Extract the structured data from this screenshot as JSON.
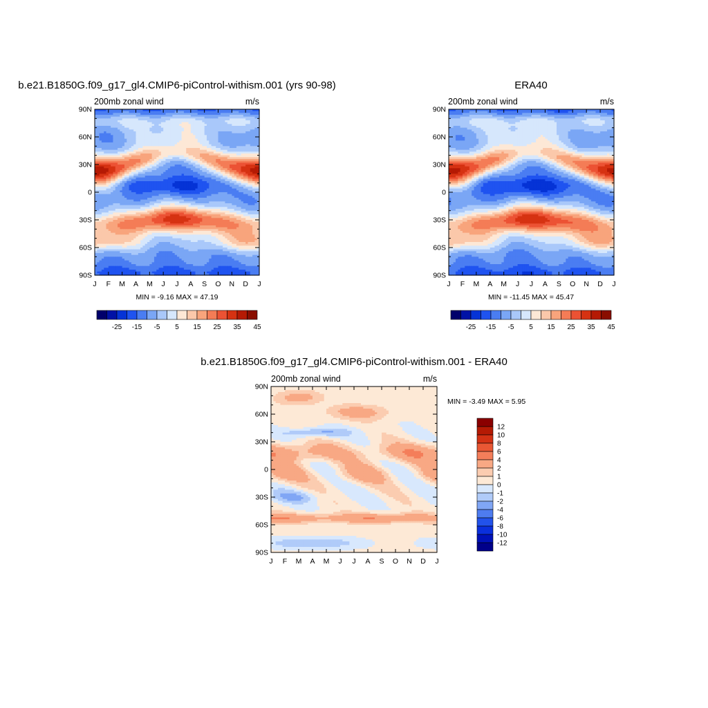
{
  "panels": [
    {
      "title": "b.e21.B1850G.f09_g17_gl4.CMIP6-piControl-withism.001 (yrs 90-98)",
      "left_label": "200mb zonal wind",
      "right_label": "m/s",
      "minmax_text": "MIN =  -9.16 MAX =  47.19",
      "kind": "model"
    },
    {
      "title": "ERA40",
      "left_label": "200mb zonal wind",
      "right_label": "m/s",
      "minmax_text": "MIN = -11.45 MAX =  45.47",
      "kind": "obs"
    },
    {
      "title": "b.e21.B1850G.f09_g17_gl4.CMIP6-piControl-withism.001 - ERA40",
      "left_label": "200mb zonal wind",
      "right_label": "m/s",
      "minmax_text": "MIN =  -3.49 MAX =   5.95",
      "kind": "diff"
    }
  ],
  "chart_data": [
    {
      "type": "heatmap",
      "title": "b.e21.B1850G.f09_g17_gl4.CMIP6-piControl-withism.001 (yrs 90-98)",
      "x_ticks": [
        "J",
        "F",
        "M",
        "A",
        "M",
        "J",
        "J",
        "A",
        "S",
        "O",
        "N",
        "D",
        "J"
      ],
      "y_ticks": [
        "90N",
        "60N",
        "30N",
        "0",
        "30S",
        "60S",
        "90S"
      ],
      "ylim": [
        -90,
        90
      ],
      "units": "m/s",
      "min": -9.16,
      "max": 47.19,
      "colorbar_labels": [
        "-25",
        "-15",
        "-5",
        "5",
        "15",
        "25",
        "35",
        "45"
      ],
      "contour_levels": [
        -30,
        -25,
        -20,
        -15,
        -10,
        -5,
        0,
        5,
        10,
        15,
        20,
        25,
        30,
        35,
        40,
        45,
        50
      ]
    },
    {
      "type": "heatmap",
      "title": "ERA40",
      "x_ticks": [
        "J",
        "F",
        "M",
        "A",
        "M",
        "J",
        "J",
        "A",
        "S",
        "O",
        "N",
        "D",
        "J"
      ],
      "y_ticks": [
        "90N",
        "60N",
        "30N",
        "0",
        "30S",
        "60S",
        "90S"
      ],
      "ylim": [
        -90,
        90
      ],
      "units": "m/s",
      "min": -11.45,
      "max": 45.47,
      "colorbar_labels": [
        "-25",
        "-15",
        "-5",
        "5",
        "15",
        "25",
        "35",
        "45"
      ],
      "contour_levels": [
        -30,
        -25,
        -20,
        -15,
        -10,
        -5,
        0,
        5,
        10,
        15,
        20,
        25,
        30,
        35,
        40,
        45,
        50
      ]
    },
    {
      "type": "heatmap",
      "title": "b.e21.B1850G.f09_g17_gl4.CMIP6-piControl-withism.001 - ERA40",
      "x_ticks": [
        "J",
        "F",
        "M",
        "A",
        "M",
        "J",
        "J",
        "A",
        "S",
        "O",
        "N",
        "D",
        "J"
      ],
      "y_ticks": [
        "90N",
        "60N",
        "30N",
        "0",
        "30S",
        "60S",
        "90S"
      ],
      "ylim": [
        -90,
        90
      ],
      "units": "m/s",
      "min": -3.49,
      "max": 5.95,
      "colorbar_labels": [
        "12",
        "10",
        "8",
        "6",
        "4",
        "2",
        "1",
        "0",
        "-1",
        "-2",
        "-4",
        "-6",
        "-8",
        "-10",
        "-12"
      ],
      "contour_levels": [
        -12,
        -10,
        -8,
        -6,
        -4,
        -2,
        -1,
        0,
        1,
        2,
        4,
        6,
        8,
        10,
        12
      ]
    }
  ],
  "colors": {
    "full_palette": [
      "#00006b",
      "#0012a6",
      "#0533d6",
      "#1f53f0",
      "#4a7df2",
      "#7aa6f5",
      "#a9c8fa",
      "#d6e7fc",
      "#fde8d6",
      "#fbc8aa",
      "#f8a47c",
      "#f47c56",
      "#ec5234",
      "#d63212",
      "#b51a04",
      "#8a0e00",
      "#600000"
    ],
    "diff_palette": [
      "#00008a",
      "#0011b8",
      "#0a2fdc",
      "#2252ea",
      "#4e7cf0",
      "#80a6f5",
      "#b0cbf9",
      "#d8e8fd",
      "#fde9d6",
      "#fbccb0",
      "#f8a884",
      "#f47e5a",
      "#e95734",
      "#d33114",
      "#b51a04",
      "#8a0000"
    ]
  }
}
